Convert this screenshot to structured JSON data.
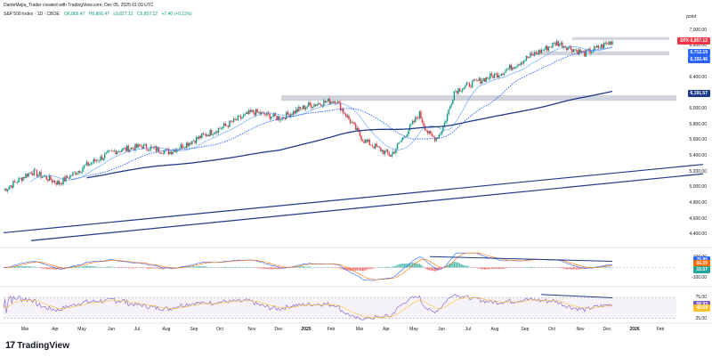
{
  "header": {
    "line1": "DanteMejia_Trader created with TradingView.com, Dec 05, 2025 01:09 UTC",
    "symbol": "S&P 500 Index · 1D · CBOE",
    "ohlc": [
      {
        "label": "O6,866.47",
        "neg": false
      },
      {
        "label": "H6,866.47",
        "neg": false
      },
      {
        "label": "L6,827.12",
        "neg": false
      },
      {
        "label": "C6,857.12",
        "neg": false
      },
      {
        "label": "+7.40 (+0.11%)",
        "neg": false
      }
    ]
  },
  "price_axis": {
    "unit": "point",
    "ticks": [
      "7,000.00",
      "6,800.00",
      "6,600.00",
      "6,400.00",
      "6,200.00",
      "6,000.00",
      "5,800.00",
      "5,600.00",
      "5,400.00",
      "5,200.00",
      "5,000.00",
      "4,800.00",
      "4,600.00",
      "4,400.00"
    ],
    "tags": [
      {
        "text": "SPX",
        "value": "6,857.12",
        "color": "#f23645"
      },
      {
        "text": "",
        "value": "6,712.19",
        "color": "#2962ff"
      },
      {
        "text": "",
        "value": "6,192.46",
        "color": "#2962ff"
      },
      {
        "text": "",
        "value": "6,191.57",
        "color": "#1e3a8a"
      }
    ]
  },
  "macd_axis": {
    "ticks": [
      "100.00",
      "-100.00"
    ],
    "tags": [
      {
        "value": "76.80",
        "color": "#2962ff"
      },
      {
        "value": "56.25",
        "color": "#ff6d00"
      },
      {
        "value": "10.57",
        "color": "#26a69a"
      }
    ]
  },
  "rsi_axis": {
    "ticks": [
      "75.00",
      "25.00"
    ],
    "tags": [
      {
        "value": "58.93",
        "color": "#7e57c2"
      },
      {
        "value": "49.69",
        "color": "#fbc02d"
      }
    ]
  },
  "time_axis": [
    "Mar",
    "Apr",
    "May",
    "Jun",
    "Jul",
    "Aug",
    "Sep",
    "Oct",
    "Nov",
    "Dec",
    "2025",
    "Feb",
    "Mar",
    "Apr",
    "May",
    "Jun",
    "Jul",
    "Aug",
    "Sep",
    "Oct",
    "Nov",
    "Dec",
    "2026",
    "Feb"
  ],
  "logo": {
    "glyph": "17",
    "text": "TradingView"
  },
  "chart_data": {
    "type": "candlestick",
    "title": "S&P 500 Index · 1D · CBOE",
    "ylabel": "point",
    "ylim": [
      4300,
      7100
    ],
    "dates": [
      "2024-02",
      "2024-03",
      "2024-04",
      "2024-05",
      "2024-06",
      "2024-07",
      "2024-08",
      "2024-09",
      "2024-10",
      "2024-11",
      "2024-12",
      "2025-01",
      "2025-02",
      "2025-03",
      "2025-04",
      "2025-05",
      "2025-06",
      "2025-07",
      "2025-08",
      "2025-09",
      "2025-10",
      "2025-11",
      "2025-12"
    ],
    "close": [
      4960,
      5200,
      5050,
      5280,
      5460,
      5520,
      5450,
      5620,
      5780,
      5960,
      5880,
      6040,
      6110,
      5600,
      5400,
      5920,
      6180,
      6330,
      6460,
      6660,
      6840,
      6700,
      6857
    ],
    "support_zones": [
      [
        6100,
        6170
      ],
      [
        6680,
        6730
      ],
      [
        6880,
        6910
      ]
    ],
    "moving_averages": [
      {
        "name": "",
        "last": 6712.19
      },
      {
        "name": "",
        "last": 6192.46
      },
      {
        "name": "",
        "last": 6191.57
      }
    ],
    "macd": {
      "ylim": [
        -150,
        150
      ],
      "last": [
        76.8,
        56.25,
        10.57
      ]
    },
    "rsi": {
      "ylim": [
        20,
        90
      ],
      "last": [
        58.93,
        49.69
      ]
    }
  }
}
